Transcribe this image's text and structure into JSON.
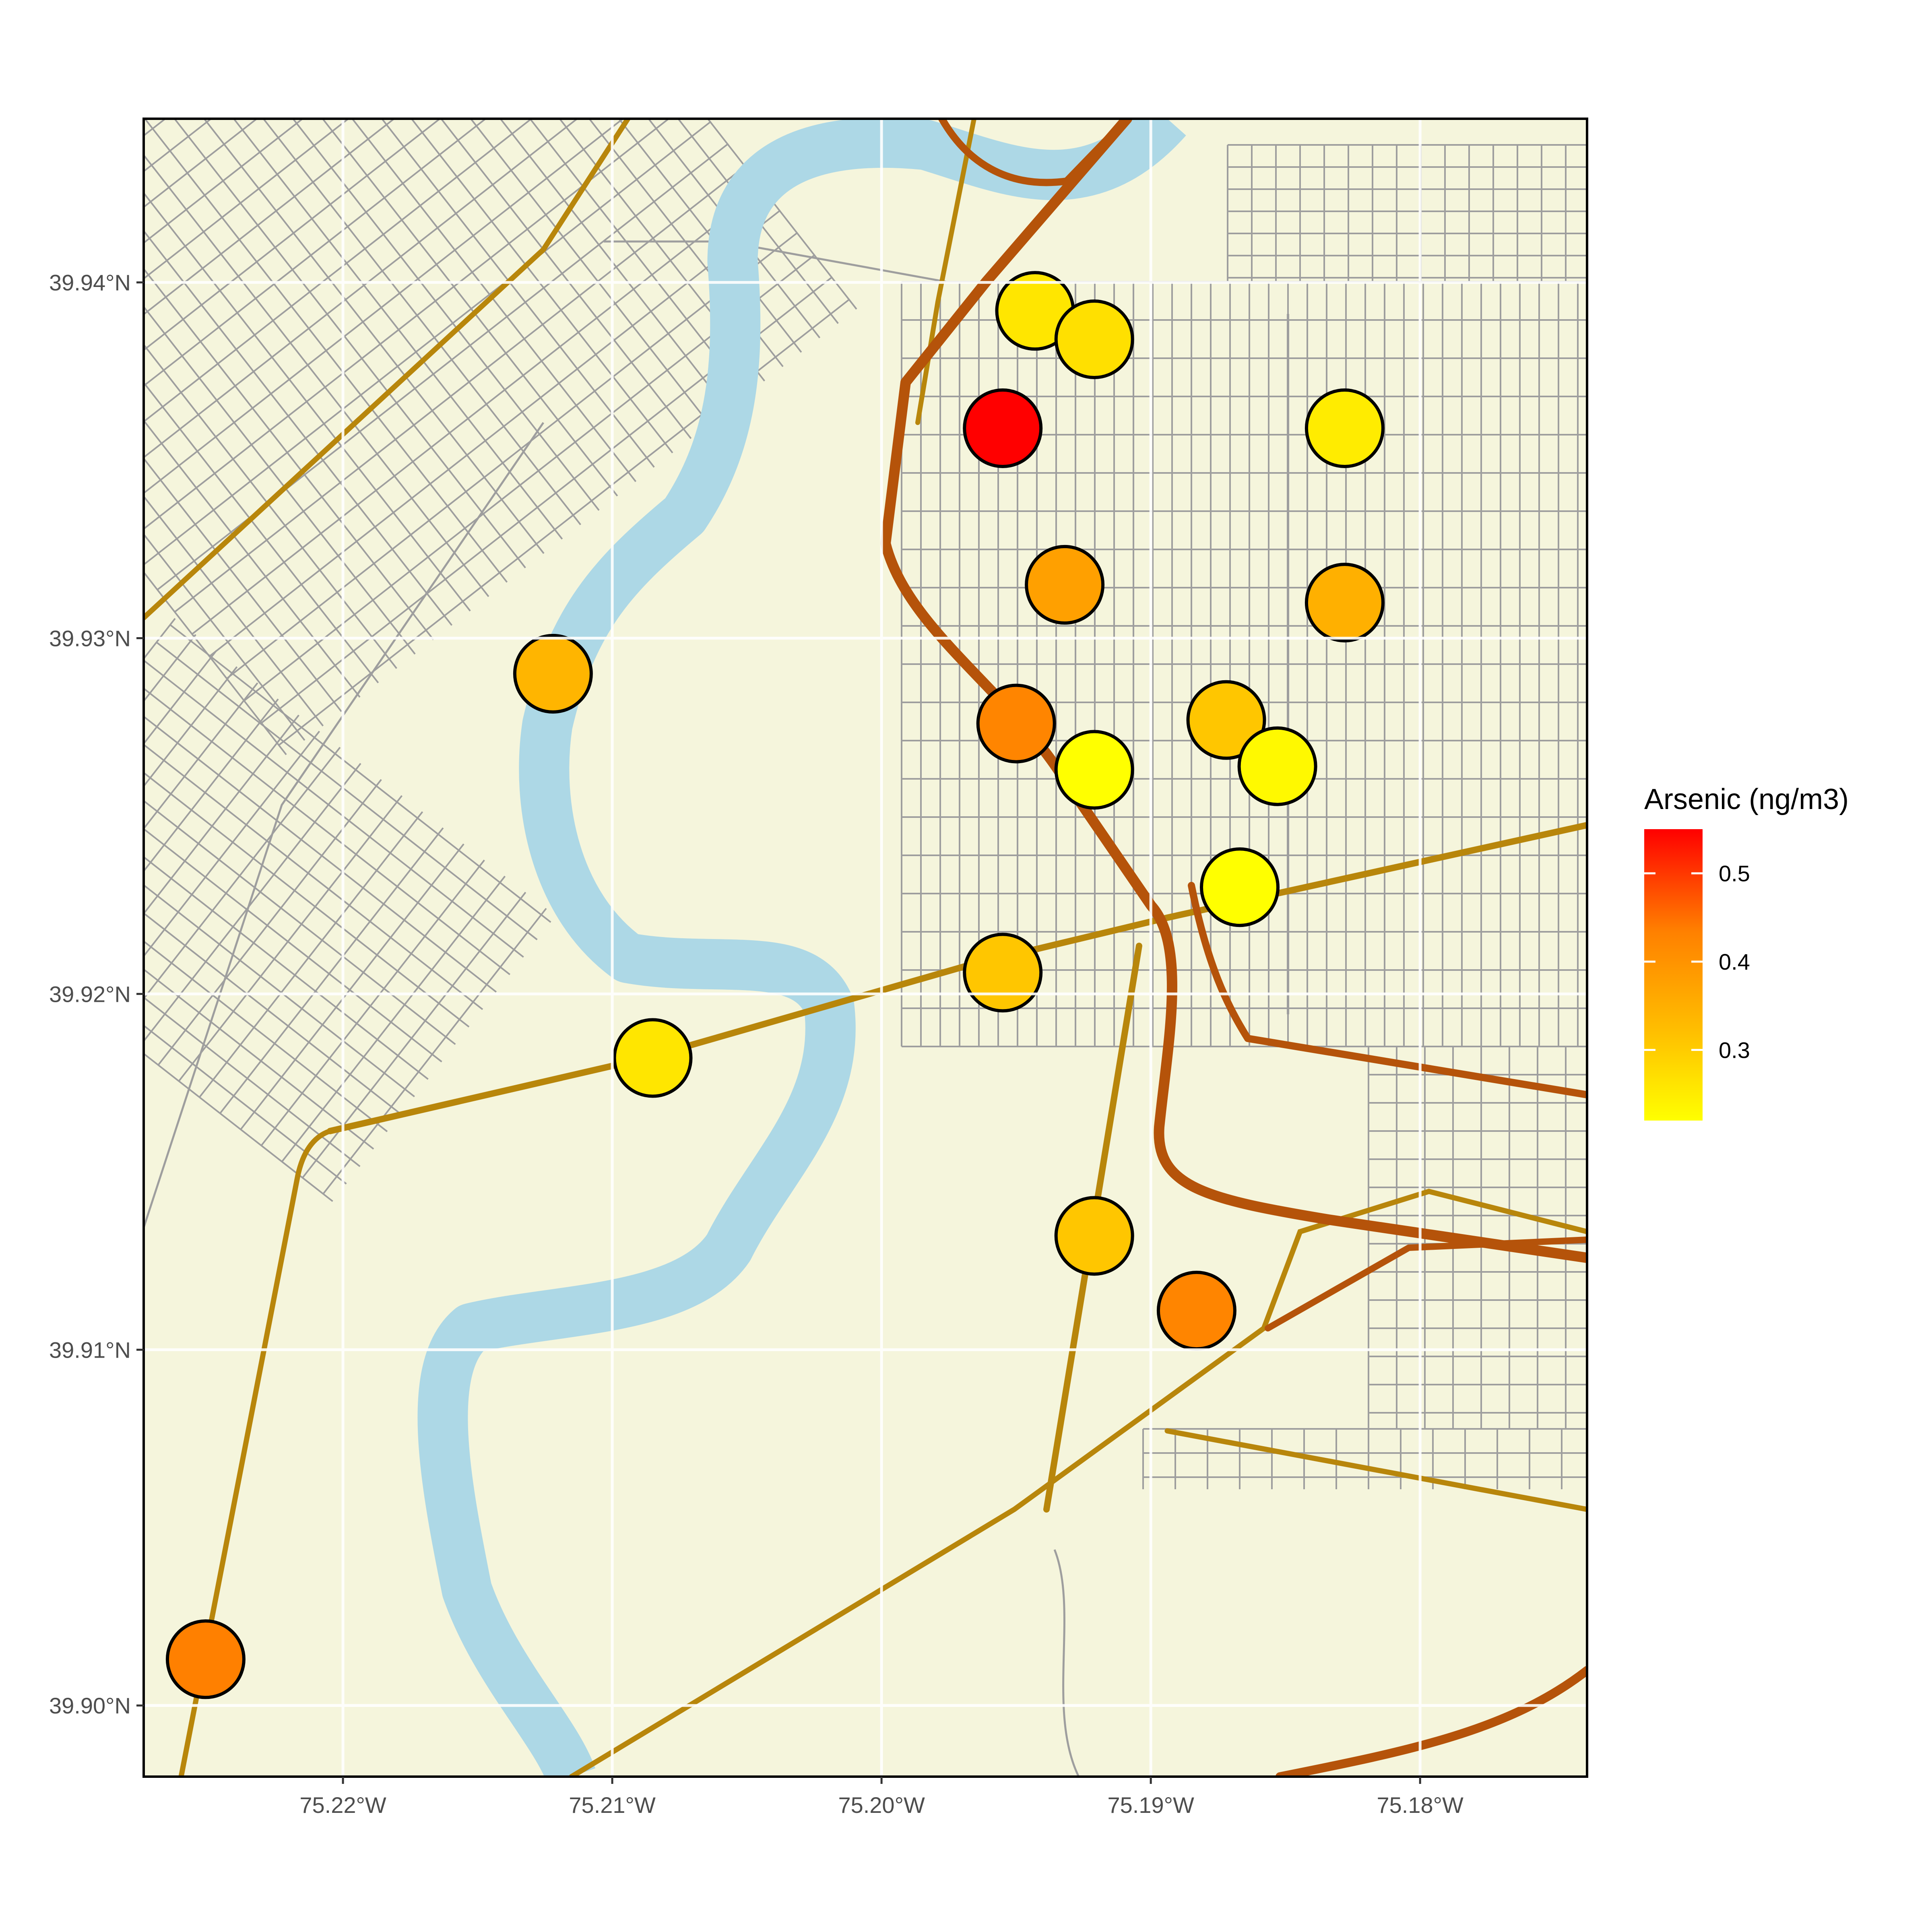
{
  "chart_data": {
    "type": "scatter",
    "title": "",
    "xlabel": "",
    "ylabel": "",
    "xlim": [
      -75.2274,
      -75.1738
    ],
    "ylim": [
      39.898,
      39.9446
    ],
    "x_ticks": [
      {
        "value": -75.22,
        "label": "75.22°W"
      },
      {
        "value": -75.21,
        "label": "75.21°W"
      },
      {
        "value": -75.2,
        "label": "75.20°W"
      },
      {
        "value": -75.19,
        "label": "75.19°W"
      },
      {
        "value": -75.18,
        "label": "75.18°W"
      }
    ],
    "y_ticks": [
      {
        "value": 39.94,
        "label": "39.94°N"
      },
      {
        "value": 39.93,
        "label": "39.93°N"
      },
      {
        "value": 39.92,
        "label": "39.92°N"
      },
      {
        "value": 39.91,
        "label": "39.91°N"
      },
      {
        "value": 39.9,
        "label": "39.90°N"
      }
    ],
    "grid": true,
    "basemap": "street map with river and highways",
    "legend": {
      "title": "Arsenic (ng/m3)",
      "placement": "right",
      "range": [
        0.22,
        0.55
      ],
      "ticks": [
        {
          "value": 0.5,
          "label": "0.5"
        },
        {
          "value": 0.4,
          "label": "0.4"
        },
        {
          "value": 0.3,
          "label": "0.3"
        }
      ],
      "colors": [
        "#FFFF00",
        "#FFC000",
        "#FF8000",
        "#FF0000"
      ]
    },
    "points": [
      {
        "lon": -75.1943,
        "lat": 39.9392,
        "value": 0.26
      },
      {
        "lon": -75.1921,
        "lat": 39.9384,
        "value": 0.27
      },
      {
        "lon": -75.1955,
        "lat": 39.9359,
        "value": 0.55
      },
      {
        "lon": -75.1828,
        "lat": 39.9359,
        "value": 0.25
      },
      {
        "lon": -75.1932,
        "lat": 39.9315,
        "value": 0.38
      },
      {
        "lon": -75.1828,
        "lat": 39.931,
        "value": 0.35
      },
      {
        "lon": -75.2122,
        "lat": 39.929,
        "value": 0.34
      },
      {
        "lon": -75.195,
        "lat": 39.9276,
        "value": 0.43
      },
      {
        "lon": -75.1872,
        "lat": 39.9277,
        "value": 0.31
      },
      {
        "lon": -75.1921,
        "lat": 39.9263,
        "value": 0.22
      },
      {
        "lon": -75.1853,
        "lat": 39.9264,
        "value": 0.23
      },
      {
        "lon": -75.1867,
        "lat": 39.923,
        "value": 0.22
      },
      {
        "lon": -75.1955,
        "lat": 39.9206,
        "value": 0.31
      },
      {
        "lon": -75.2085,
        "lat": 39.9182,
        "value": 0.26
      },
      {
        "lon": -75.1921,
        "lat": 39.9132,
        "value": 0.31
      },
      {
        "lon": -75.1883,
        "lat": 39.9111,
        "value": 0.43
      },
      {
        "lon": -75.2251,
        "lat": 39.9013,
        "value": 0.44
      }
    ]
  }
}
